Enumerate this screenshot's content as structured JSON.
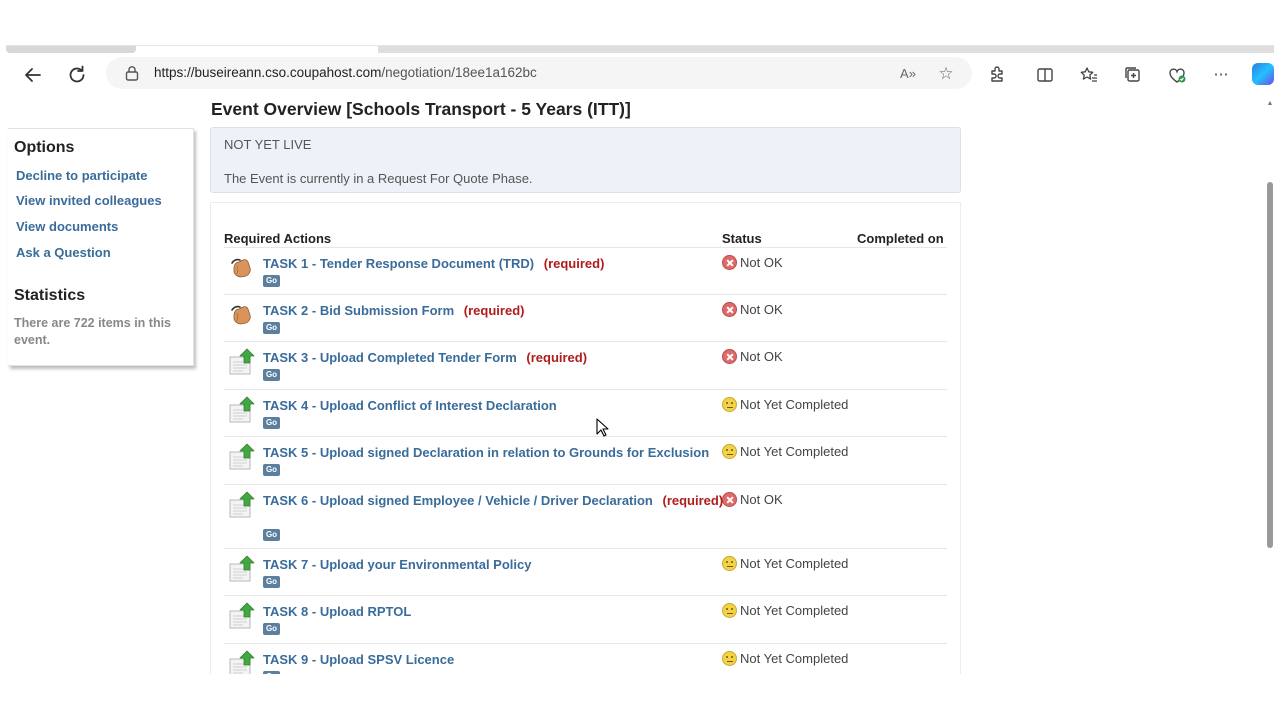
{
  "browser": {
    "url_host": "https://buseireann.cso.coupahost.com",
    "url_path": "/negotiation/18ee1a162bc",
    "read_aloud_label": "A»"
  },
  "sidebar": {
    "options_heading": "Options",
    "links": [
      "Decline to participate",
      "View invited colleagues",
      "View documents",
      "Ask a Question"
    ],
    "statistics_heading": "Statistics",
    "statistics_text": "There are 722 items in this event."
  },
  "main": {
    "title": "Event Overview [Schools Transport - 5 Years (ITT)]",
    "event_status": "NOT YET LIVE",
    "phase_text": "The Event is currently in a Request For Quote Phase.",
    "columns": [
      "Required Actions",
      "Status",
      "Completed on"
    ],
    "go_label": "Go",
    "tasks": [
      {
        "title": "TASK 1 - Tender Response Document (TRD)",
        "required": "(required)",
        "status": "Not OK",
        "status_kind": "bad",
        "icon": "hand-pointer-icon"
      },
      {
        "title": "TASK 2 - Bid Submission Form",
        "required": "(required)",
        "status": "Not OK",
        "status_kind": "bad",
        "icon": "hand-pointer-icon"
      },
      {
        "title": "TASK 3 - Upload Completed Tender Form",
        "required": "(required)",
        "status": "Not OK",
        "status_kind": "bad",
        "icon": "upload-document-icon"
      },
      {
        "title": "TASK 4 - Upload Conflict of Interest Declaration",
        "required": "",
        "status": "Not Yet Completed",
        "status_kind": "meh",
        "icon": "upload-document-icon"
      },
      {
        "title": "TASK 5 - Upload signed Declaration in relation to Grounds for Exclusion",
        "required": "",
        "status": "Not Yet Completed",
        "status_kind": "meh",
        "icon": "upload-document-icon"
      },
      {
        "title": "TASK 6 - Upload signed Employee / Vehicle / Driver Declaration",
        "required": "(required)",
        "status": "Not OK",
        "status_kind": "bad",
        "icon": "upload-document-icon"
      },
      {
        "title": "TASK 7 - Upload your Environmental Policy",
        "required": "",
        "status": "Not Yet Completed",
        "status_kind": "meh",
        "icon": "upload-document-icon"
      },
      {
        "title": "TASK 8 - Upload RPTOL",
        "required": "",
        "status": "Not Yet Completed",
        "status_kind": "meh",
        "icon": "upload-document-icon"
      },
      {
        "title": "TASK 9 - Upload SPSV Licence",
        "required": "",
        "status": "Not Yet Completed",
        "status_kind": "meh",
        "icon": "upload-document-icon"
      }
    ]
  },
  "colors": {
    "link": "#3a6c9a",
    "required": "#b01c1c",
    "info_bg": "#edf2f8"
  }
}
